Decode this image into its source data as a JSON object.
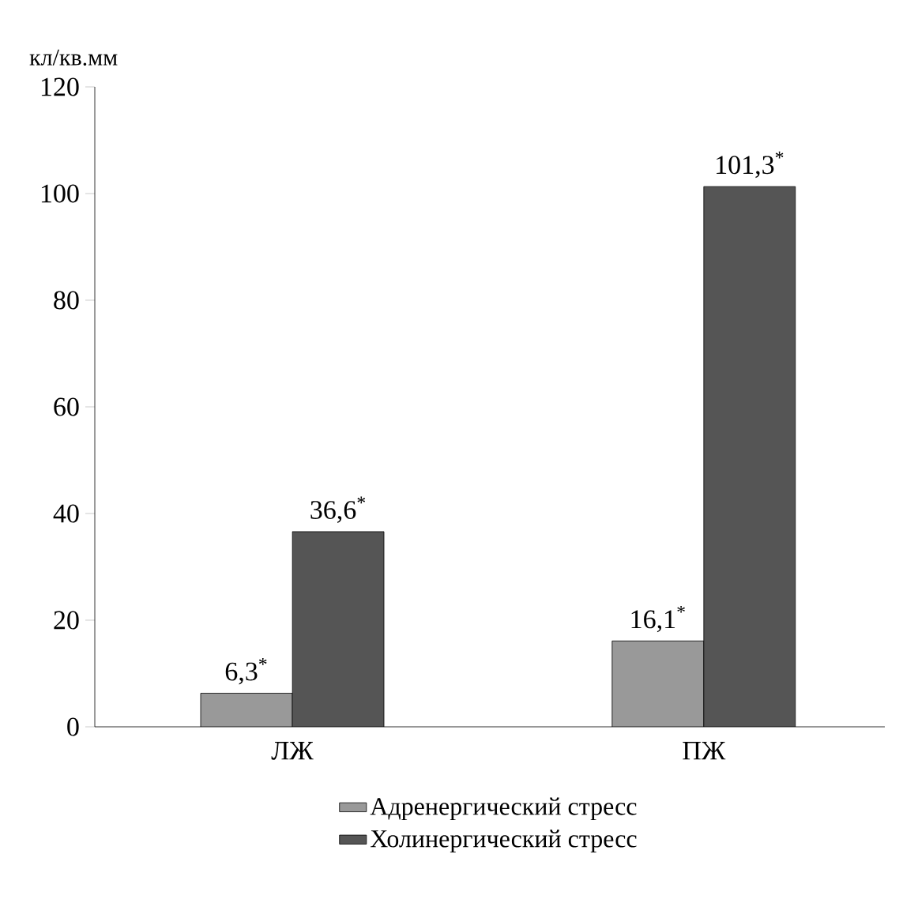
{
  "chart_data": {
    "type": "bar",
    "ylabel": "кл/кв.мм",
    "categories": [
      "ЛЖ",
      "ПЖ"
    ],
    "series": [
      {
        "name": "Адренергический стресс",
        "color": "#999999",
        "values": [
          6.3,
          16.1
        ],
        "value_labels": [
          "6,3$^{*}$",
          "16,1$^{*}$"
        ]
      },
      {
        "name": "Холинергический стресс",
        "color": "#555555",
        "values": [
          36.6,
          101.3
        ],
        "value_labels": [
          "36,6$^{*}$",
          "101,3$^{*}$"
        ]
      }
    ],
    "ylim": [
      0,
      120
    ],
    "yticks": [
      0,
      20,
      40,
      60,
      80,
      100,
      120
    ],
    "legend": "bottom"
  }
}
